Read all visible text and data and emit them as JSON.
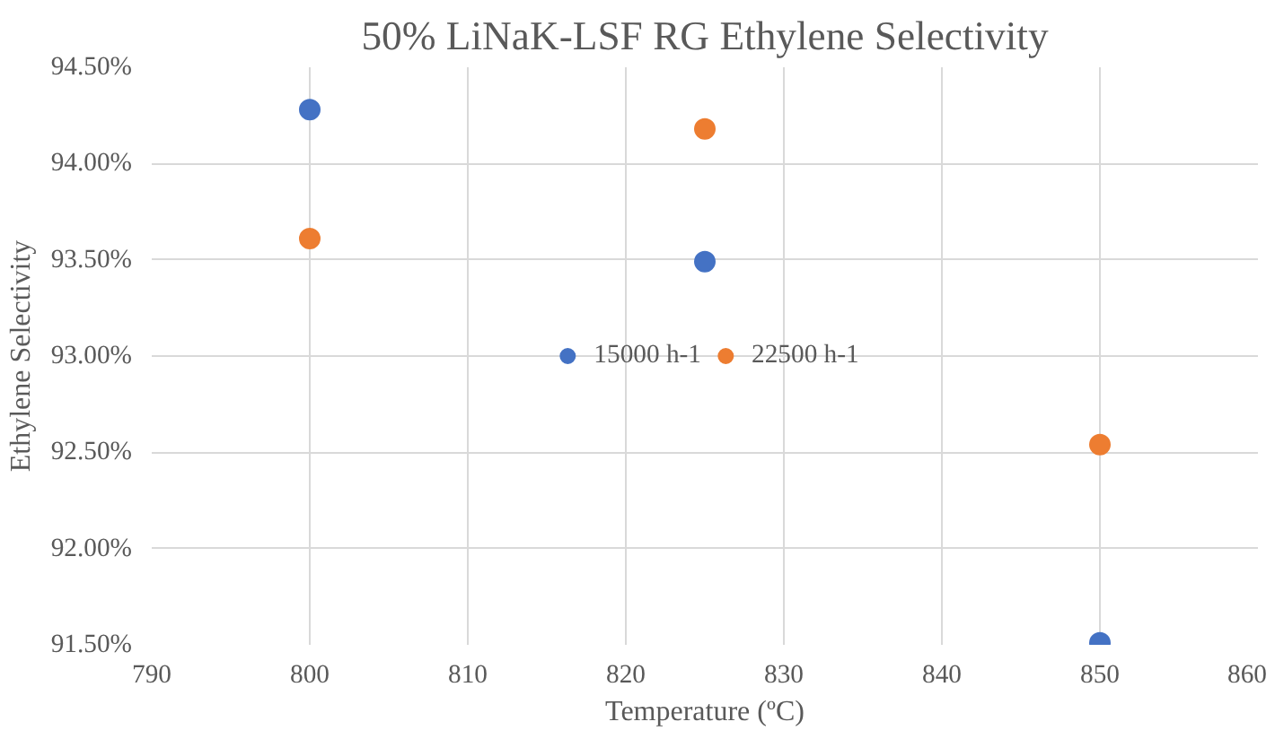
{
  "chart_data": {
    "type": "scatter",
    "title": "50% LiNaK-LSF RG Ethylene Selectivity",
    "xlabel": "Temperature (ºC)",
    "ylabel": "Ethylene Selectivity",
    "series": [
      {
        "name": "15000 h-1",
        "color": "#4472c4",
        "x": [
          800,
          825,
          850
        ],
        "values": [
          94.28,
          93.49,
          91.51
        ]
      },
      {
        "name": "22500 h-1",
        "color": "#ed7d31",
        "x": [
          800,
          825,
          850
        ],
        "values": [
          93.61,
          94.18,
          92.54
        ]
      }
    ],
    "xlim": [
      790,
      860
    ],
    "xticks": [
      790,
      800,
      810,
      820,
      830,
      840,
      850,
      860
    ],
    "ylim": [
      91.5,
      94.5
    ],
    "yticks": [
      {
        "value": 91.5,
        "label": "91.50%"
      },
      {
        "value": 92.0,
        "label": "92.00%"
      },
      {
        "value": 92.5,
        "label": "92.50%"
      },
      {
        "value": 93.0,
        "label": "93.00%"
      },
      {
        "value": 93.5,
        "label": "93.50%"
      },
      {
        "value": 94.0,
        "label": "94.00%"
      },
      {
        "value": 94.5,
        "label": "94.50%"
      }
    ],
    "grid": true,
    "legend": "center",
    "marker": "circle"
  }
}
